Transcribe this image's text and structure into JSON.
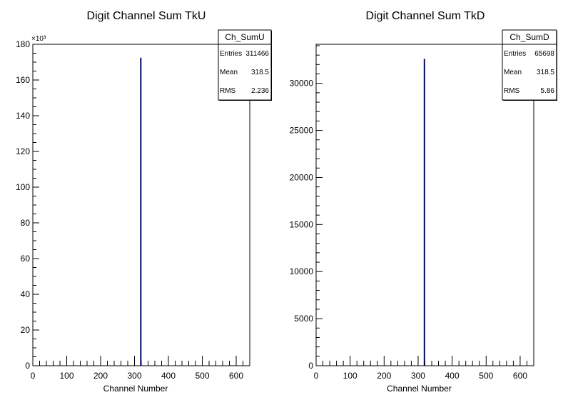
{
  "chart_data": [
    {
      "type": "bar",
      "title": "Digit Channel Sum TkU",
      "xlabel": "Channel Number",
      "ylabel": "",
      "xlim": [
        0,
        640
      ],
      "ylim": [
        0,
        180
      ],
      "y_multiplier_label": "×10³",
      "x_ticks": [
        0,
        100,
        200,
        300,
        400,
        500,
        600
      ],
      "y_ticks": [
        0,
        20,
        40,
        60,
        80,
        100,
        120,
        140,
        160,
        180
      ],
      "grid": false,
      "line_color": "#000080",
      "bins": [
        {
          "x": 318.5,
          "value": 172.5
        }
      ],
      "stats": {
        "name": "Ch_SumU",
        "rows": [
          {
            "label": "Entries",
            "value": "311466"
          },
          {
            "label": "Mean",
            "value": "318.5"
          },
          {
            "label": "RMS",
            "value": "2.236"
          }
        ]
      }
    },
    {
      "type": "bar",
      "title": "Digit Channel Sum TkD",
      "xlabel": "Channel Number",
      "ylabel": "",
      "xlim": [
        0,
        640
      ],
      "ylim": [
        0,
        34150
      ],
      "y_multiplier_label": "",
      "x_ticks": [
        0,
        100,
        200,
        300,
        400,
        500,
        600
      ],
      "y_ticks": [
        0,
        5000,
        10000,
        15000,
        20000,
        25000,
        30000
      ],
      "grid": false,
      "line_color": "#000080",
      "bins": [
        {
          "x": 318.5,
          "value": 32600
        }
      ],
      "stats": {
        "name": "Ch_SumD",
        "rows": [
          {
            "label": "Entries",
            "value": "65698"
          },
          {
            "label": "Mean",
            "value": "318.5"
          },
          {
            "label": "RMS",
            "value": "5.86"
          }
        ]
      }
    }
  ]
}
